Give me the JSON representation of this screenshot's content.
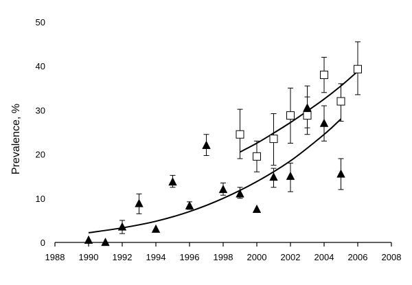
{
  "chart_data": {
    "type": "scatter",
    "title": "",
    "xlabel": "",
    "ylabel": "Prevalence, %",
    "xlim": [
      1988,
      2008
    ],
    "ylim": [
      0,
      50
    ],
    "x_ticks": [
      "1988",
      "1990",
      "1992",
      "1994",
      "1996",
      "1998",
      "2000",
      "2002",
      "2004",
      "2006",
      "2008"
    ],
    "y_ticks": [
      "0",
      "10",
      "20",
      "30",
      "40",
      "50"
    ],
    "grid": false,
    "legend": "none",
    "series": [
      {
        "marker": "filled-triangle",
        "points": [
          {
            "x": 1990,
            "y": 0.5,
            "lo": null,
            "hi": null
          },
          {
            "x": 1991,
            "y": 0,
            "lo": null,
            "hi": null
          },
          {
            "x": 1992,
            "y": 3.5,
            "lo": 2,
            "hi": 5
          },
          {
            "x": 1993,
            "y": 8.8,
            "lo": 6.5,
            "hi": 11
          },
          {
            "x": 1994,
            "y": 3,
            "lo": null,
            "hi": null
          },
          {
            "x": 1995,
            "y": 13.7,
            "lo": 12.5,
            "hi": 15.2
          },
          {
            "x": 1996,
            "y": 8.3,
            "lo": 7.5,
            "hi": 9.2
          },
          {
            "x": 1997,
            "y": 22,
            "lo": 19.7,
            "hi": 24.5
          },
          {
            "x": 1998,
            "y": 12,
            "lo": 10.7,
            "hi": 13.5
          },
          {
            "x": 1999,
            "y": 11,
            "lo": 10,
            "hi": 12.5
          },
          {
            "x": 2000,
            "y": 7.5,
            "lo": null,
            "hi": null
          },
          {
            "x": 2001,
            "y": 14.8,
            "lo": 12.5,
            "hi": 16.8
          },
          {
            "x": 2002,
            "y": 15,
            "lo": 11.5,
            "hi": 18
          },
          {
            "x": 2003,
            "y": 30.5,
            "lo": 26,
            "hi": 35.5
          },
          {
            "x": 2004,
            "y": 27,
            "lo": 23,
            "hi": 31
          },
          {
            "x": 2005,
            "y": 15.5,
            "lo": 12,
            "hi": 19
          }
        ],
        "fit_curve": {
          "x": [
            1990,
            1992,
            1994,
            1996,
            1998,
            2000,
            2002,
            2004,
            2005
          ],
          "y": [
            2.2,
            3.3,
            4.8,
            7.0,
            10.0,
            13.8,
            18.5,
            24.5,
            28.0
          ]
        }
      },
      {
        "marker": "open-square",
        "points": [
          {
            "x": 1999,
            "y": 24.5,
            "lo": 19,
            "hi": 30.2
          },
          {
            "x": 2000,
            "y": 19.5,
            "lo": 16,
            "hi": 23
          },
          {
            "x": 2001,
            "y": 23.5,
            "lo": 17.5,
            "hi": 29.2
          },
          {
            "x": 2002,
            "y": 28.8,
            "lo": 22.5,
            "hi": 35
          },
          {
            "x": 2003,
            "y": 28.8,
            "lo": 24.5,
            "hi": 33
          },
          {
            "x": 2004,
            "y": 38,
            "lo": 34,
            "hi": 42
          },
          {
            "x": 2005,
            "y": 32,
            "lo": 27.5,
            "hi": 36
          },
          {
            "x": 2006,
            "y": 39.3,
            "lo": 33.5,
            "hi": 45.5
          }
        ],
        "fit_curve": {
          "x": [
            1999,
            2000,
            2001,
            2002,
            2003,
            2004,
            2005,
            2006
          ],
          "y": [
            20.5,
            22.5,
            24.8,
            27.2,
            29.8,
            32.5,
            35.5,
            38.8
          ]
        }
      }
    ]
  }
}
